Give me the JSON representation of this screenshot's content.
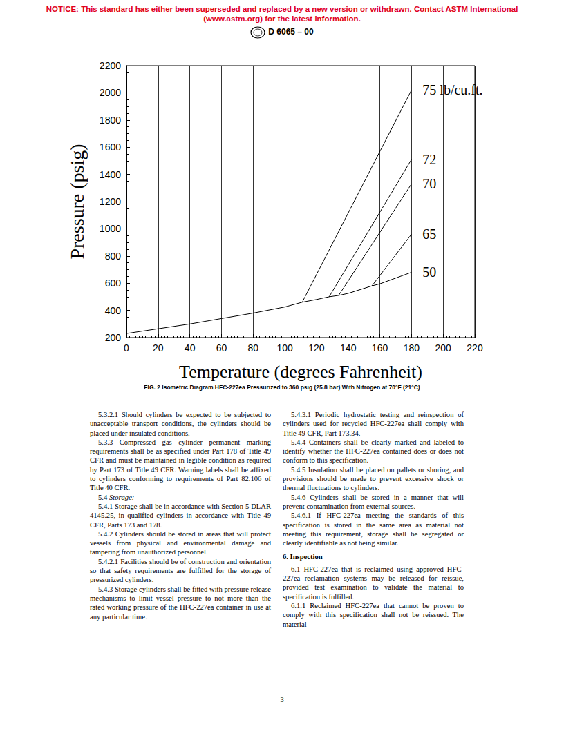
{
  "notice": "NOTICE: This standard has either been superseded and replaced by a new version or withdrawn. Contact ASTM International (www.astm.org) for the latest information.",
  "designation": "D 6065 – 00",
  "chart_data": {
    "type": "line",
    "x_label": "Temperature (degrees Fahrenheit)",
    "y_label": "Pressure (psig)",
    "xlim": [
      0,
      220
    ],
    "xticks": [
      0,
      20,
      40,
      60,
      80,
      100,
      120,
      140,
      160,
      180,
      200,
      220
    ],
    "ylim": [
      200,
      2200
    ],
    "yticks": [
      200,
      400,
      600,
      800,
      1000,
      1200,
      1400,
      1600,
      1800,
      2000,
      2200
    ],
    "grid": true,
    "color": "#000000",
    "series": [
      {
        "name": "50",
        "x": [
          0,
          20,
          40,
          60,
          80,
          100,
          111,
          120,
          128,
          134,
          140,
          155,
          160,
          180
        ],
        "values": [
          230,
          265,
          300,
          340,
          380,
          425,
          460,
          480,
          500,
          510,
          525,
          580,
          595,
          680
        ]
      },
      {
        "name": "65",
        "x": [
          155,
          180
        ],
        "values": [
          580,
          960
        ]
      },
      {
        "name": "70",
        "x": [
          134,
          180
        ],
        "values": [
          510,
          1330
        ]
      },
      {
        "name": "72",
        "x": [
          128,
          180
        ],
        "values": [
          500,
          1510
        ]
      },
      {
        "name": "75 lb/cu.ft.",
        "x": [
          111,
          180
        ],
        "values": [
          460,
          2020
        ]
      }
    ]
  },
  "caption": "FIG. 2 Isometric Diagram HFC-227ea Pressurized to 360 psig (25.8 bar) With Nitrogen at 70°F (21°C)",
  "columns": [
    [
      {
        "number": "5.3.2.1",
        "text": "Should cylinders be expected to be subjected to unacceptable transport conditions, the cylinders should be placed under insulated conditions."
      },
      {
        "number": "5.3.3",
        "text": "Compressed gas cylinder permanent marking requirements shall be as specified under Part 178 of Title 49 CFR and must be maintained in legible condition as required by Part 173 of Title 49 CFR. Warning labels shall be affixed to cylinders conforming to requirements of Part 82.106 of Title 40 CFR."
      },
      {
        "number": "5.4",
        "text": "Storage:",
        "kind": "subheading"
      },
      {
        "number": "5.4.1",
        "text": "Storage shall be in accordance with Section 5 DLAR 4145.25, in qualified cylinders in accordance with Title 49 CFR, Parts 173 and 178."
      },
      {
        "number": "5.4.2",
        "text": "Cylinders should be stored in areas that will protect vessels from physical and environmental damage and tampering from unauthorized personnel."
      },
      {
        "number": "5.4.2.1",
        "text": "Facilities should be of construction and orientation so that safety requirements are fulfilled for the storage of pressurized cylinders."
      },
      {
        "number": "5.4.3",
        "text": "Storage cylinders shall be fitted with pressure release mechanisms to limit vessel pressure to not more than the rated working pressure of the HFC-227ea container in use at any particular time."
      }
    ],
    [
      {
        "number": "5.4.3.1",
        "text": "Periodic hydrostatic testing and reinspection of cylinders used for recycled HFC-227ea shall comply with Title 49 CFR, Part 173.34."
      },
      {
        "number": "5.4.4",
        "text": "Containers shall be clearly marked and labeled to identify whether the HFC-227ea contained does or does not conform to this specification."
      },
      {
        "number": "5.4.5",
        "text": "Insulation shall be placed on pallets or shoring, and provisions should be made to prevent excessive shock or thermal fluctuations to cylinders."
      },
      {
        "number": "5.4.6",
        "text": "Cylinders shall be stored in a manner that will prevent contamination from external sources."
      },
      {
        "number": "5.4.6.1",
        "text": "If HFC-227ea meeting the standards of this specification is stored in the same area as material not meeting this requirement, storage shall be segregated or clearly identifiable as not being similar."
      },
      {
        "number": "6.",
        "text": "Inspection",
        "kind": "heading"
      },
      {
        "number": "6.1",
        "text": "HFC-227ea that is reclaimed using approved HFC-227ea reclamation systems may be released for reissue, provided test examination to validate the material to specification is fulfilled."
      },
      {
        "number": "6.1.1",
        "text": "Reclaimed HFC-227ea that cannot be proven to comply with this specification shall not be reissued. The material"
      }
    ]
  ],
  "page_number": "3"
}
